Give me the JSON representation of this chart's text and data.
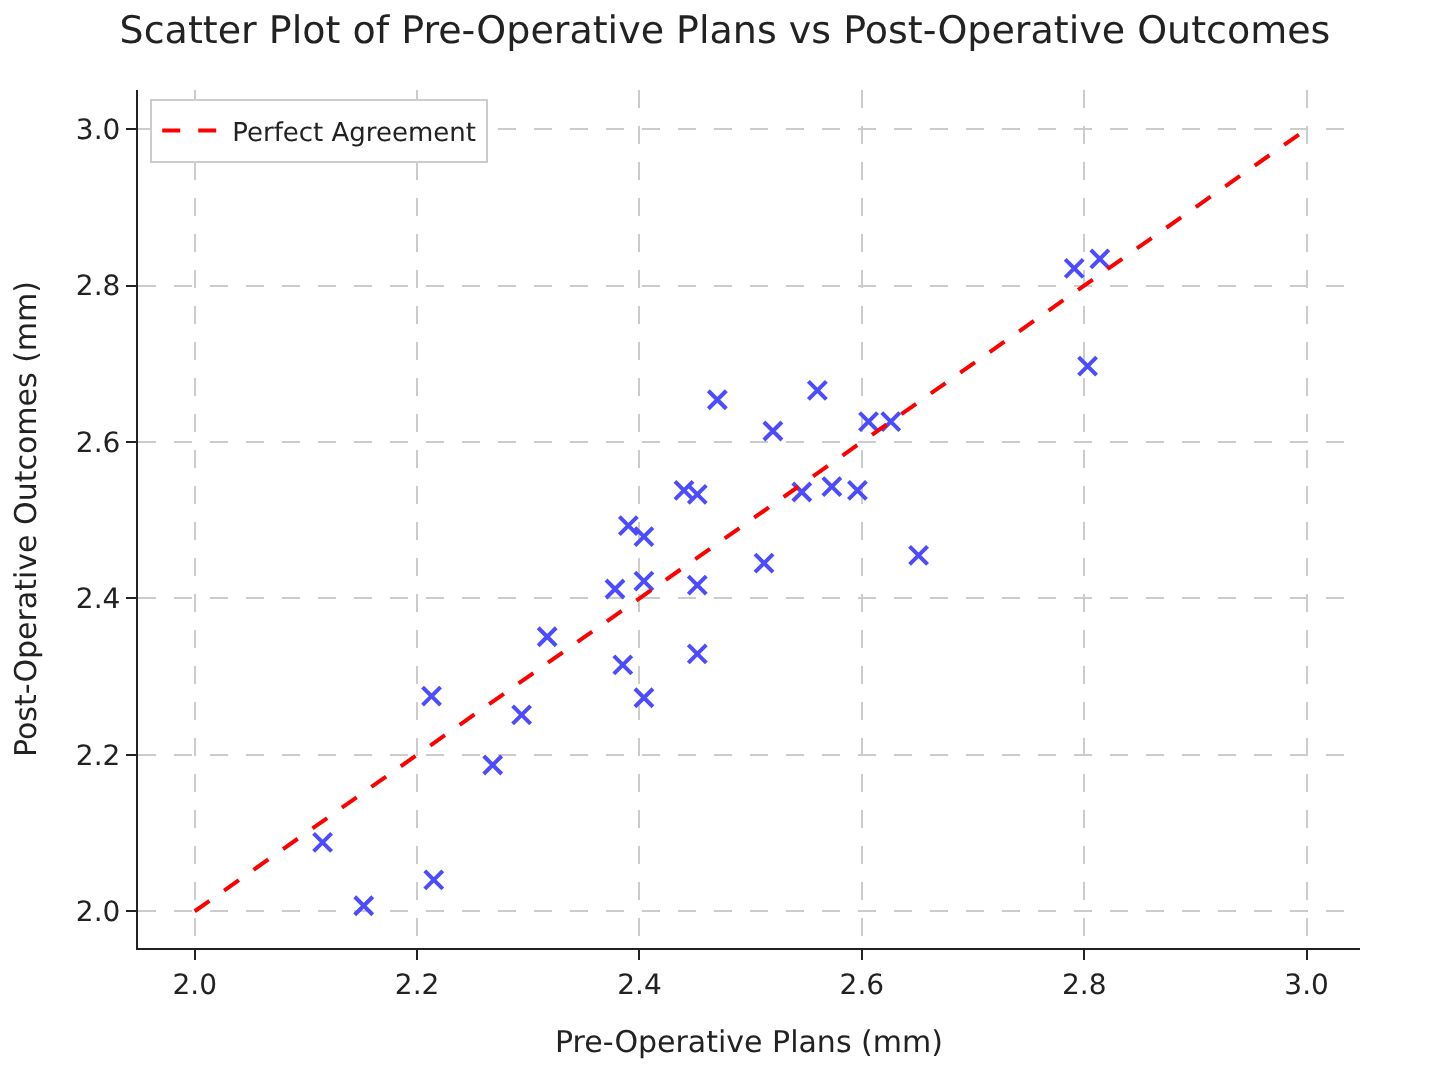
{
  "chart_data": {
    "type": "scatter",
    "title": "Scatter Plot of Pre-Operative Plans vs Post-Operative Outcomes",
    "xlabel": "Pre-Operative Plans (mm)",
    "ylabel": "Post-Operative Outcomes (mm)",
    "xlim": [
      1.949,
      3.048
    ],
    "ylim": [
      1.953,
      3.05
    ],
    "xticks": [
      {
        "value": 2.0,
        "label": "2.0"
      },
      {
        "value": 2.2,
        "label": "2.2"
      },
      {
        "value": 2.4,
        "label": "2.4"
      },
      {
        "value": 2.6,
        "label": "2.6"
      },
      {
        "value": 2.8,
        "label": "2.8"
      },
      {
        "value": 3.0,
        "label": "3.0"
      }
    ],
    "yticks": [
      {
        "value": 2.0,
        "label": "2.0"
      },
      {
        "value": 2.2,
        "label": "2.2"
      },
      {
        "value": 2.4,
        "label": "2.4"
      },
      {
        "value": 2.6,
        "label": "2.6"
      },
      {
        "value": 2.8,
        "label": "2.8"
      },
      {
        "value": 3.0,
        "label": "3.0"
      }
    ],
    "grid": true,
    "legend": "top left",
    "series": [
      {
        "color": "#4b4bff",
        "marker": "cross",
        "x": [
          2.115,
          2.152,
          2.213,
          2.215,
          2.268,
          2.294,
          2.317,
          2.378,
          2.39,
          2.404,
          2.404,
          2.385,
          2.404,
          2.452,
          2.452,
          2.512,
          2.791,
          2.814,
          2.803,
          2.47,
          2.56,
          2.52,
          2.606,
          2.626,
          2.44,
          2.452,
          2.546,
          2.573,
          2.596,
          2.651
        ],
        "values": [
          2.088,
          2.007,
          2.275,
          2.04,
          2.187,
          2.251,
          2.351,
          2.412,
          2.493,
          2.479,
          2.422,
          2.315,
          2.273,
          2.417,
          2.329,
          2.445,
          2.822,
          2.834,
          2.697,
          2.654,
          2.666,
          2.614,
          2.626,
          2.626,
          2.538,
          2.533,
          2.536,
          2.543,
          2.538,
          2.455
        ]
      },
      {
        "type": "line",
        "name": "Perfect Agreement",
        "color": "#ff0000",
        "line_style": "dashed",
        "marker": "none",
        "x": [
          2.0,
          3.0
        ],
        "values": [
          2.0,
          3.0
        ]
      }
    ]
  }
}
